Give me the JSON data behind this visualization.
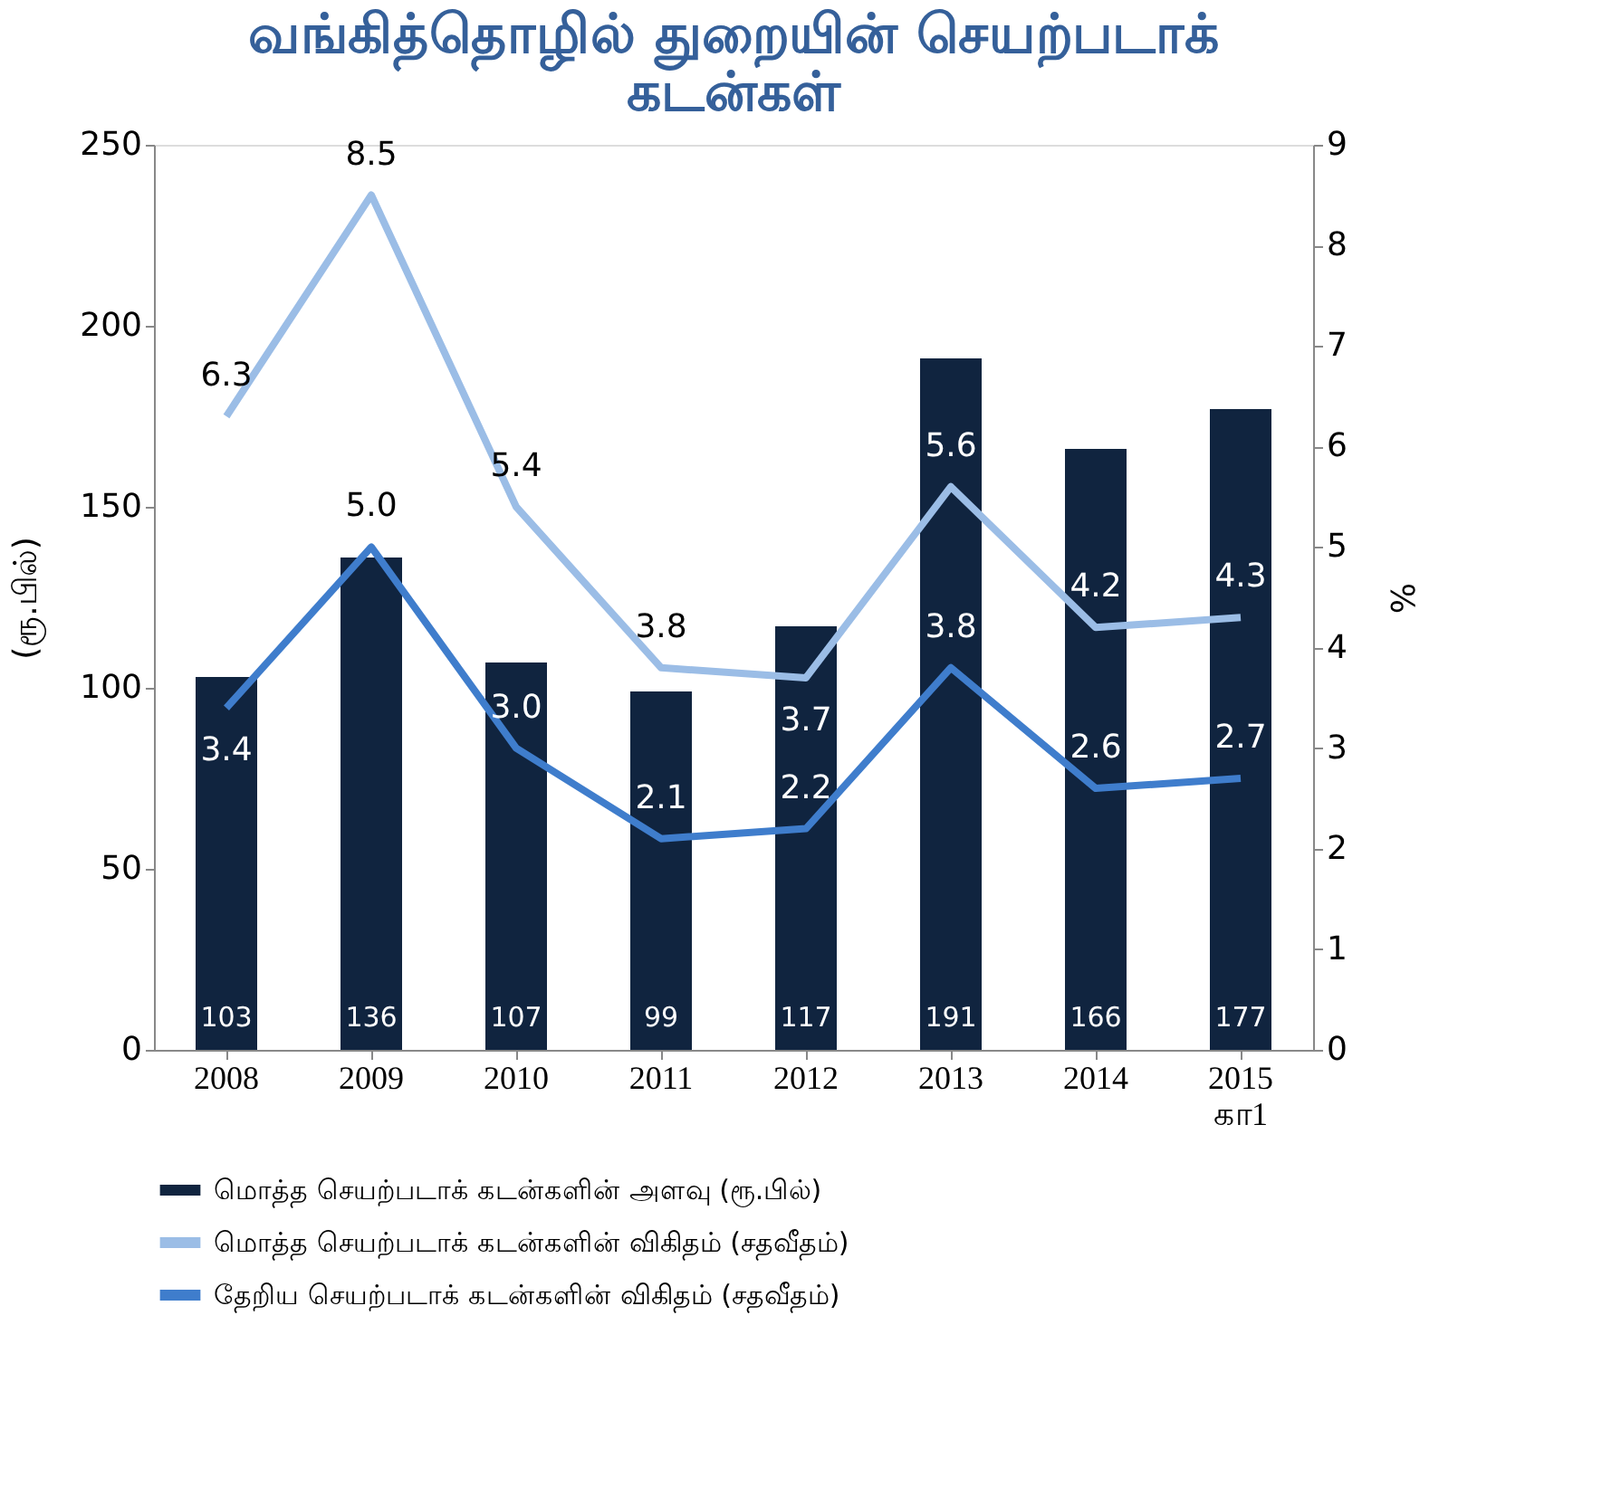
{
  "chart_data": {
    "type": "bar",
    "title": "வங்கித்தொழில் துறையின் செயற்படாக் கடன்கள்",
    "ylabel": "(ரூ.பில்)",
    "y2label": "%",
    "categories": [
      "2008",
      "2009",
      "2010",
      "2011",
      "2012",
      "2013",
      "2014",
      "2015 கா1"
    ],
    "series": [
      {
        "name": "மொத்த செயற்படாக் கடன்களின் அளவு (ரூ.பில்)",
        "color": "#10243f",
        "values": [
          103,
          136,
          107,
          99,
          117,
          191,
          166,
          177
        ]
      },
      {
        "name": "மொத்த செயற்படாக் கடன்களின் விகிதம் (சதவீதம்)",
        "type": "line",
        "axis": "y2",
        "color": "#9bbde6",
        "values": [
          6.3,
          8.5,
          5.4,
          3.8,
          3.7,
          5.6,
          4.2,
          4.3
        ],
        "value_labels": [
          "6.3",
          "8.5",
          "5.4",
          "3.8",
          "3.7",
          "5.6",
          "4.2",
          "4.3"
        ]
      },
      {
        "name": "தேறிய செயற்படாக் கடன்களின் விகிதம் (சதவீதம்)",
        "type": "line",
        "axis": "y2",
        "color": "#3f7dcc",
        "values": [
          3.4,
          5.0,
          3.0,
          2.1,
          2.2,
          3.8,
          2.6,
          2.7
        ],
        "value_labels": [
          "3.4",
          "5.0",
          "3.0",
          "2.1",
          "2.2",
          "3.8",
          "2.6",
          "2.7"
        ]
      }
    ],
    "ylim": [
      0,
      250
    ],
    "yticks": [
      0,
      50,
      100,
      150,
      200,
      250
    ],
    "y2lim": [
      0,
      9
    ],
    "y2ticks": [
      0,
      1,
      2,
      3,
      4,
      5,
      6,
      7,
      8,
      9
    ],
    "data_labels": true,
    "legend": "bottom",
    "grid": false,
    "marker": "none"
  }
}
